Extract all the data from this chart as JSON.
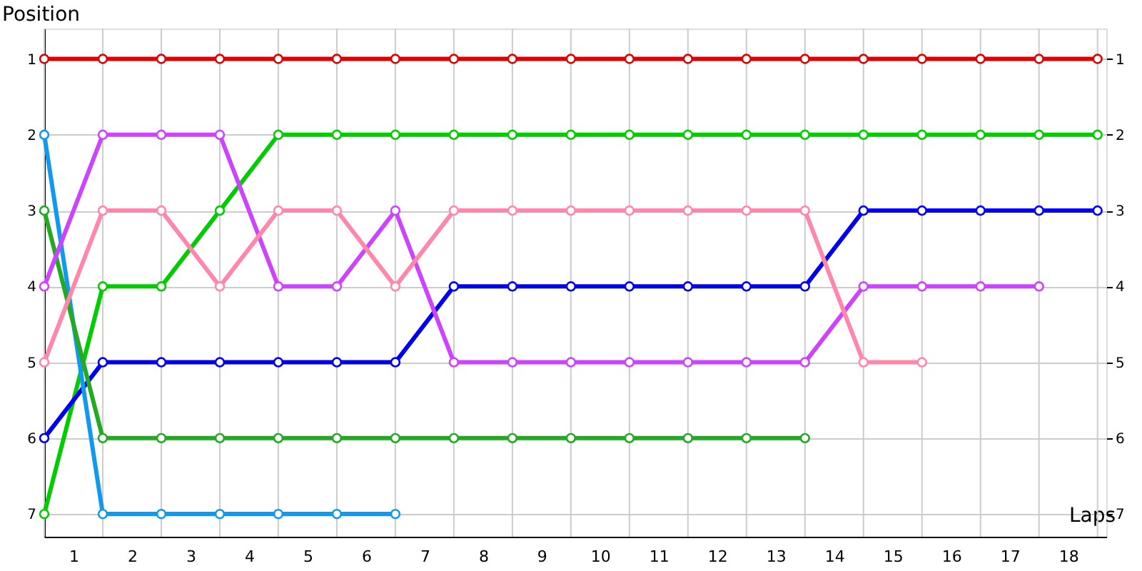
{
  "chart_data": {
    "type": "line",
    "xlabel": "Laps",
    "ylabel": "Position",
    "x": [
      0,
      1,
      2,
      3,
      4,
      5,
      6,
      7,
      8,
      9,
      10,
      11,
      12,
      13,
      14,
      15,
      16,
      17,
      18
    ],
    "series": [
      {
        "color": "#dd0000",
        "values": [
          1,
          1,
          1,
          1,
          1,
          1,
          1,
          1,
          1,
          1,
          1,
          1,
          1,
          1,
          1,
          1,
          1,
          1,
          1
        ]
      },
      {
        "color": "#00cc00",
        "values": [
          7,
          4,
          4,
          3,
          2,
          2,
          2,
          2,
          2,
          2,
          2,
          2,
          2,
          2,
          2,
          2,
          2,
          2,
          2
        ]
      },
      {
        "color": "#0000ee",
        "values": [
          6,
          5,
          5,
          5,
          5,
          5,
          5,
          4,
          4,
          4,
          4,
          4,
          4,
          4,
          3,
          3,
          3,
          3,
          3
        ]
      },
      {
        "color": "#1199ee",
        "values": [
          2,
          7,
          7,
          7,
          7,
          7,
          7,
          null,
          null,
          null,
          null,
          null,
          null,
          null,
          null,
          null,
          null,
          null,
          null
        ]
      },
      {
        "color": "#22aa22",
        "values": [
          3,
          6,
          6,
          6,
          6,
          6,
          6,
          6,
          6,
          6,
          6,
          6,
          6,
          6,
          null,
          null,
          null,
          null,
          null
        ]
      },
      {
        "color": "#cc44ff",
        "values": [
          4,
          2,
          2,
          2,
          4,
          4,
          3,
          5,
          5,
          5,
          5,
          5,
          5,
          5,
          4,
          4,
          4,
          4,
          null
        ]
      },
      {
        "color": "#ff88aa",
        "values": [
          5,
          3,
          3,
          4,
          3,
          3,
          4,
          3,
          3,
          3,
          3,
          3,
          3,
          3,
          5,
          5,
          null,
          null,
          null
        ]
      }
    ],
    "xlim": [
      0,
      18.15
    ],
    "xticks": [
      {
        "value": 0.5,
        "label": "1"
      },
      {
        "value": 1.5,
        "label": "2"
      },
      {
        "value": 2.5,
        "label": "3"
      },
      {
        "value": 3.5,
        "label": "4"
      },
      {
        "value": 4.5,
        "label": "5"
      },
      {
        "value": 5.5,
        "label": "6"
      },
      {
        "value": 6.5,
        "label": "7"
      },
      {
        "value": 7.5,
        "label": "8"
      },
      {
        "value": 8.5,
        "label": "9"
      },
      {
        "value": 9.5,
        "label": "10"
      },
      {
        "value": 10.5,
        "label": "11"
      },
      {
        "value": 11.5,
        "label": "12"
      },
      {
        "value": 12.5,
        "label": "13"
      },
      {
        "value": 13.5,
        "label": "14"
      },
      {
        "value": 14.5,
        "label": "15"
      },
      {
        "value": 15.5,
        "label": "16"
      },
      {
        "value": 16.5,
        "label": "17"
      },
      {
        "value": 17.5,
        "label": "18"
      }
    ],
    "ylim": [
      7.3,
      0.6
    ],
    "yticks": [
      1,
      2,
      3,
      4,
      5,
      6,
      7
    ],
    "y2lim": [
      7.3,
      0.6
    ],
    "y2ticks": [
      1,
      2,
      3,
      4,
      5,
      6,
      7
    ],
    "grid": true,
    "marker": "circle",
    "line_style": "solid"
  }
}
